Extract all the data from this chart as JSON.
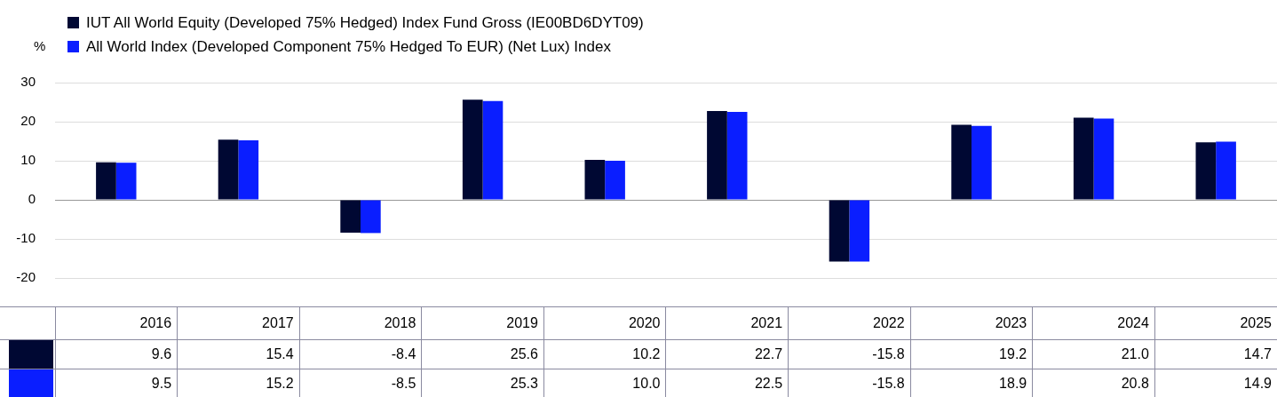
{
  "chart_data": {
    "type": "bar",
    "ylabel": "%",
    "categories": [
      "2016",
      "2017",
      "2018",
      "2019",
      "2020",
      "2021",
      "2022",
      "2023",
      "2024",
      "2025"
    ],
    "series": [
      {
        "name": "IUT All World Equity (Developed 75% Hedged) Index Fund Gross (IE00BD6DYT09)",
        "color": "#000833",
        "values": [
          9.6,
          15.4,
          -8.4,
          25.6,
          10.2,
          22.7,
          -15.8,
          19.2,
          21.0,
          14.7
        ],
        "value_labels": [
          "9.6",
          "15.4",
          "-8.4",
          "25.6",
          "10.2",
          "22.7",
          "-15.8",
          "19.2",
          "21.0",
          "14.7"
        ]
      },
      {
        "name": "All World Index (Developed Component 75% Hedged To EUR) (Net Lux) Index",
        "color": "#0a1eff",
        "values": [
          9.5,
          15.2,
          -8.5,
          25.3,
          10.0,
          22.5,
          -15.8,
          18.9,
          20.8,
          14.9
        ],
        "value_labels": [
          "9.5",
          "15.2",
          "-8.5",
          "25.3",
          "10.0",
          "22.5",
          "-15.8",
          "18.9",
          "20.8",
          "14.9"
        ]
      }
    ],
    "ylim": [
      -20,
      30
    ],
    "yticks": [
      -20,
      -10,
      0,
      10,
      20,
      30
    ],
    "grid": "y",
    "legend": "top left"
  }
}
